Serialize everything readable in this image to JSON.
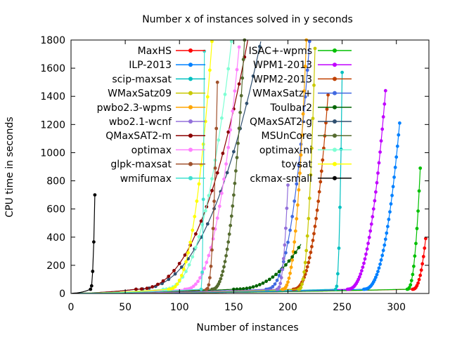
{
  "chart_data": {
    "type": "line",
    "title": "Number x of instances solved in y seconds",
    "xlabel": "Number of instances",
    "ylabel": "CPU time in seconds",
    "xlim": [
      0,
      330
    ],
    "ylim": [
      0,
      1800
    ],
    "xticks": [
      0,
      50,
      100,
      150,
      200,
      250,
      300
    ],
    "yticks": [
      0,
      200,
      400,
      600,
      800,
      1000,
      1200,
      1400,
      1600,
      1800
    ],
    "grid": false,
    "legend_placement": "top-left, two columns",
    "series": [
      {
        "name": "MaxHS",
        "color": "#ff0000",
        "marker": "plus",
        "end": 327,
        "knee": 315,
        "tmax": 390
      },
      {
        "name": "ISAC+-wpms",
        "color": "#00c000",
        "marker": "cross",
        "end": 322,
        "knee": 310,
        "tmax": 890
      },
      {
        "name": "ILP-2013",
        "color": "#0080ff",
        "marker": "star",
        "end": 303,
        "knee": 270,
        "tmax": 1210
      },
      {
        "name": "WPM1-2013",
        "color": "#c000ff",
        "marker": "square-open",
        "end": 290,
        "knee": 255,
        "tmax": 1440
      },
      {
        "name": "scip-maxsat",
        "color": "#00c0c0",
        "marker": "square",
        "end": 250,
        "knee": 244,
        "tmax": 1570
      },
      {
        "name": "WPM2-2013",
        "color": "#c04000",
        "marker": "circle-plus",
        "end": 237,
        "knee": 205,
        "tmax": 1410
      },
      {
        "name": "WMaxSatz09",
        "color": "#c8c800",
        "marker": "circle",
        "end": 225,
        "knee": 210,
        "tmax": 1740
      },
      {
        "name": "WMaxSatz+",
        "color": "#4169e1",
        "marker": "triangle",
        "end": 220,
        "knee": 180,
        "tmax": 1790
      },
      {
        "name": "pwbo2.3-wpms",
        "color": "#ffa500",
        "marker": "triangle",
        "end": 217,
        "knee": 195,
        "tmax": 1800
      },
      {
        "name": "Toulbar2",
        "color": "#006400",
        "marker": "triangle-down",
        "end": 212,
        "knee": 150,
        "tmax": 350
      },
      {
        "name": "wbo2.1-wcnf",
        "color": "#9370db",
        "marker": "triangle-down",
        "end": 200,
        "knee": 190,
        "tmax": 770
      },
      {
        "name": "QMaxSAT2-g",
        "color": "#2f4f6f",
        "marker": "diamond",
        "end": 175,
        "knee": 60,
        "tmax": 1790
      },
      {
        "name": "QMaxSAT2-m",
        "color": "#8b0000",
        "marker": "diamond",
        "end": 163,
        "knee": 60,
        "tmax": 1800
      },
      {
        "name": "MSUnCore",
        "color": "#556b2f",
        "marker": "plus",
        "end": 160,
        "knee": 130,
        "tmax": 1800
      },
      {
        "name": "optimax",
        "color": "#ff80ff",
        "marker": "cross",
        "end": 155,
        "knee": 105,
        "tmax": 1750
      },
      {
        "name": "optimax-ni",
        "color": "#7fffd4",
        "marker": "star",
        "end": 148,
        "knee": 85,
        "tmax": 1790
      },
      {
        "name": "glpk-maxsat",
        "color": "#a0522d",
        "marker": "square-open",
        "end": 135,
        "knee": 125,
        "tmax": 1500
      },
      {
        "name": "toysat",
        "color": "#ffff00",
        "marker": "square",
        "end": 130,
        "knee": 90,
        "tmax": 1790
      },
      {
        "name": "wmifumax",
        "color": "#40e0d0",
        "marker": "circle",
        "end": 123,
        "knee": 120,
        "tmax": 1720
      },
      {
        "name": "ckmax-small",
        "color": "#000000",
        "marker": "circle",
        "end": 22,
        "knee": 18,
        "tmax": 700
      }
    ]
  }
}
